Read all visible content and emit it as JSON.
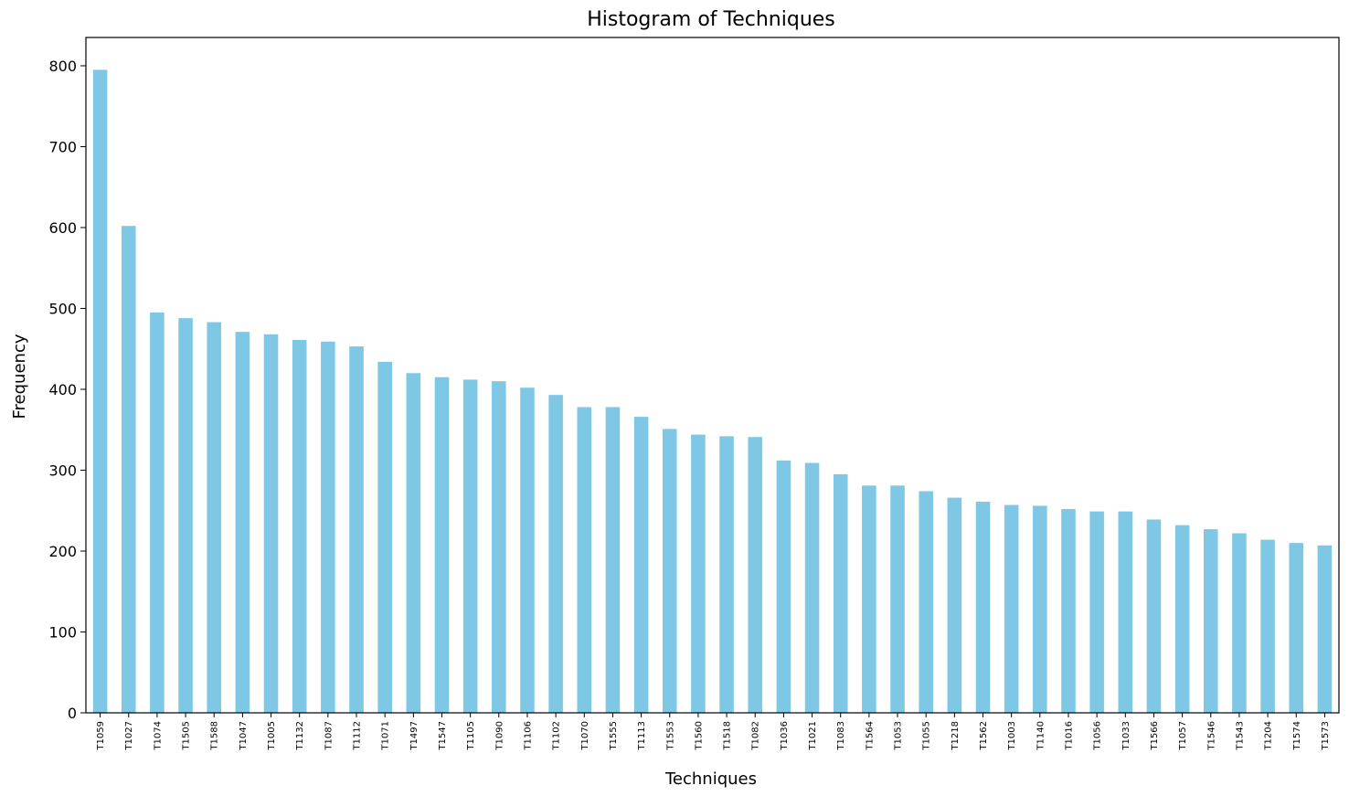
{
  "chart_data": {
    "type": "bar",
    "title": "Histogram of Techniques",
    "xlabel": "Techniques",
    "ylabel": "Frequency",
    "ylim": [
      0,
      835
    ],
    "yticks": [
      0,
      100,
      200,
      300,
      400,
      500,
      600,
      700,
      800
    ],
    "grid": false,
    "legend": "none",
    "bar_color": "#7ec8e6",
    "categories": [
      "T1059",
      "T1027",
      "T1074",
      "T1505",
      "T1588",
      "T1047",
      "T1005",
      "T1132",
      "T1087",
      "T1112",
      "T1071",
      "T1497",
      "T1547",
      "T1105",
      "T1090",
      "T1106",
      "T1102",
      "T1070",
      "T1555",
      "T1113",
      "T1553",
      "T1560",
      "T1518",
      "T1082",
      "T1036",
      "T1021",
      "T1083",
      "T1564",
      "T1053",
      "T1055",
      "T1218",
      "T1562",
      "T1003",
      "T1140",
      "T1016",
      "T1056",
      "T1033",
      "T1566",
      "T1057",
      "T1546",
      "T1543",
      "T1204",
      "T1574",
      "T1573"
    ],
    "values": [
      795,
      602,
      495,
      488,
      483,
      471,
      468,
      461,
      459,
      453,
      434,
      420,
      415,
      412,
      410,
      402,
      393,
      378,
      378,
      366,
      351,
      344,
      342,
      341,
      312,
      309,
      295,
      281,
      281,
      274,
      266,
      261,
      257,
      256,
      252,
      249,
      249,
      239,
      232,
      227,
      222,
      214,
      210,
      207
    ]
  }
}
